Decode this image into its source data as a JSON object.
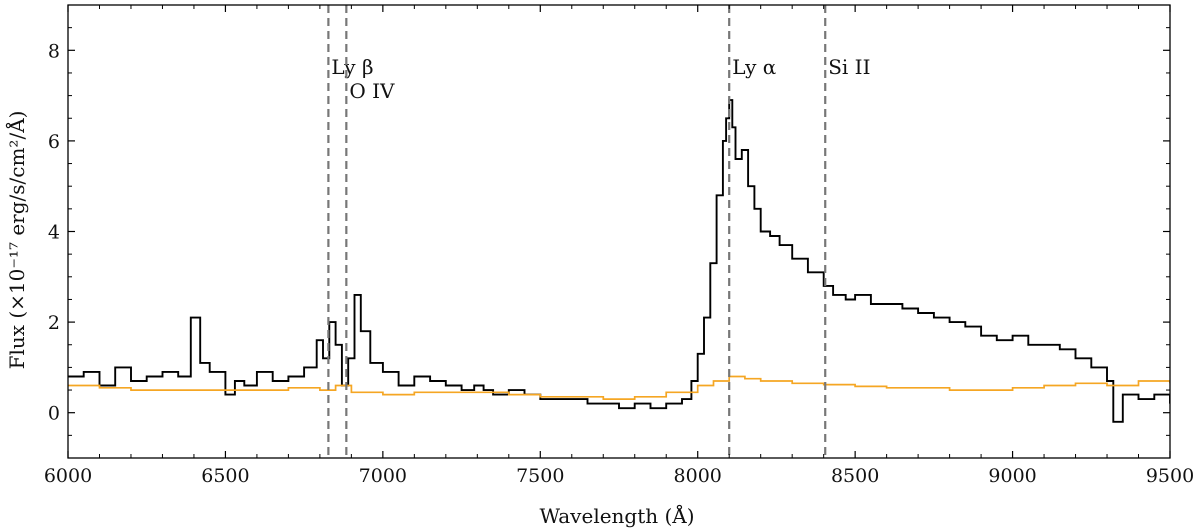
{
  "chart_data": {
    "type": "line",
    "title": "",
    "xlabel": "Wavelength (Å)",
    "ylabel": "Flux (×10⁻¹⁷ erg/s/cm²/Å)",
    "xlim": [
      6000,
      9500
    ],
    "ylim": [
      -1.0,
      9.0
    ],
    "xticks": [
      6000,
      6500,
      7000,
      7500,
      8000,
      8500,
      9000,
      9500
    ],
    "yticks": [
      0,
      2,
      4,
      6,
      8
    ],
    "grid": false,
    "legend": "none",
    "series": [
      {
        "name": "",
        "color": "#000000",
        "style": "steps",
        "x": [
          6000,
          6050,
          6100,
          6150,
          6200,
          6250,
          6300,
          6350,
          6390,
          6420,
          6450,
          6500,
          6530,
          6560,
          6600,
          6650,
          6700,
          6750,
          6790,
          6810,
          6830,
          6850,
          6870,
          6890,
          6910,
          6930,
          6960,
          7000,
          7050,
          7100,
          7150,
          7200,
          7250,
          7290,
          7320,
          7350,
          7400,
          7450,
          7500,
          7550,
          7600,
          7650,
          7700,
          7750,
          7800,
          7850,
          7900,
          7950,
          7980,
          8000,
          8020,
          8040,
          8060,
          8080,
          8090,
          8100,
          8110,
          8120,
          8140,
          8160,
          8180,
          8200,
          8230,
          8260,
          8300,
          8350,
          8400,
          8430,
          8470,
          8500,
          8550,
          8600,
          8650,
          8700,
          8750,
          8800,
          8850,
          8900,
          8950,
          9000,
          9050,
          9100,
          9150,
          9200,
          9250,
          9300,
          9320,
          9350,
          9400,
          9450,
          9500
        ],
        "y": [
          0.8,
          0.9,
          0.6,
          1.0,
          0.7,
          0.8,
          0.9,
          0.8,
          2.1,
          1.1,
          0.9,
          0.4,
          0.7,
          0.6,
          0.9,
          0.7,
          0.8,
          1.0,
          1.6,
          1.2,
          2.0,
          1.5,
          0.6,
          1.2,
          2.6,
          1.8,
          1.1,
          0.9,
          0.6,
          0.8,
          0.7,
          0.6,
          0.5,
          0.6,
          0.5,
          0.4,
          0.5,
          0.4,
          0.3,
          0.3,
          0.3,
          0.2,
          0.2,
          0.1,
          0.2,
          0.1,
          0.2,
          0.3,
          0.7,
          1.3,
          2.1,
          3.3,
          4.8,
          6.0,
          6.5,
          6.9,
          6.3,
          5.6,
          5.8,
          5.0,
          4.5,
          4.0,
          3.9,
          3.7,
          3.4,
          3.1,
          2.8,
          2.6,
          2.5,
          2.6,
          2.4,
          2.4,
          2.3,
          2.2,
          2.1,
          2.0,
          1.9,
          1.7,
          1.6,
          1.7,
          1.5,
          1.5,
          1.4,
          1.2,
          1.0,
          0.7,
          -0.2,
          0.4,
          0.3,
          0.4,
          0.2
        ]
      },
      {
        "name": "",
        "color": "#f5a623",
        "style": "steps",
        "x": [
          6000,
          6100,
          6200,
          6300,
          6400,
          6500,
          6600,
          6700,
          6800,
          6850,
          6900,
          7000,
          7100,
          7200,
          7300,
          7400,
          7500,
          7600,
          7700,
          7800,
          7900,
          8000,
          8050,
          8100,
          8150,
          8200,
          8300,
          8400,
          8500,
          8600,
          8700,
          8800,
          8900,
          9000,
          9100,
          9200,
          9300,
          9400,
          9500
        ],
        "y": [
          0.6,
          0.55,
          0.5,
          0.5,
          0.5,
          0.5,
          0.5,
          0.55,
          0.5,
          0.6,
          0.45,
          0.4,
          0.45,
          0.45,
          0.45,
          0.4,
          0.35,
          0.35,
          0.3,
          0.35,
          0.45,
          0.6,
          0.7,
          0.8,
          0.75,
          0.7,
          0.65,
          0.62,
          0.58,
          0.55,
          0.55,
          0.5,
          0.5,
          0.55,
          0.6,
          0.65,
          0.6,
          0.7,
          0.65
        ]
      }
    ],
    "reference_lines": [
      {
        "x": 6827,
        "label": "Ly β"
      },
      {
        "x": 6884,
        "label": "O IV"
      },
      {
        "x": 8100,
        "label": "Ly α"
      },
      {
        "x": 8405,
        "label": "Si II"
      }
    ],
    "reference_line_color": "#777777"
  }
}
